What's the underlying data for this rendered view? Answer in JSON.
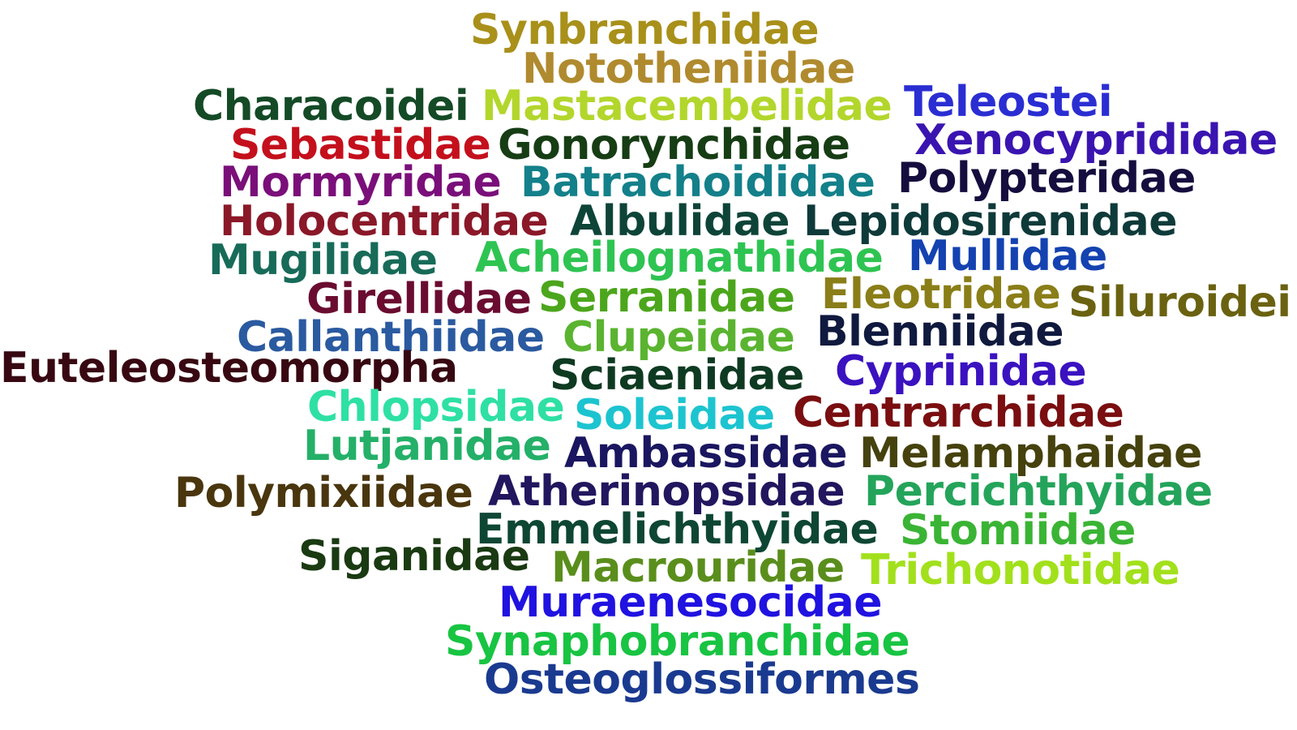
{
  "words": [
    {
      "text": "Synbranchidae",
      "color": "#a8901a"
    },
    {
      "text": "Nototheniidae",
      "color": "#b08a2e"
    },
    {
      "text": "Characoidei",
      "color": "#144a26"
    },
    {
      "text": "Mastacembelidae",
      "color": "#b3d62c"
    },
    {
      "text": "Teleostei",
      "color": "#2a2ed2"
    },
    {
      "text": "Sebastidae",
      "color": "#c4101c"
    },
    {
      "text": "Gonorynchidae",
      "color": "#163d14"
    },
    {
      "text": "Xenocyprididae",
      "color": "#3a14b0"
    },
    {
      "text": "Mormyridae",
      "color": "#7a0f7a"
    },
    {
      "text": "Batrachoididae",
      "color": "#13808a"
    },
    {
      "text": "Polypteridae",
      "color": "#150d3e"
    },
    {
      "text": "Holocentridae",
      "color": "#8a1828"
    },
    {
      "text": "Albulidae",
      "color": "#0e4438"
    },
    {
      "text": "Lepidosirenidae",
      "color": "#0f3a3a"
    },
    {
      "text": "Mugilidae",
      "color": "#176b58"
    },
    {
      "text": "Acheilognathidae",
      "color": "#2ec452"
    },
    {
      "text": "Mullidae",
      "color": "#1442b0"
    },
    {
      "text": "Girellidae",
      "color": "#6a0c30"
    },
    {
      "text": "Serranidae",
      "color": "#4ca61c"
    },
    {
      "text": "Eleotridae",
      "color": "#8a7e18"
    },
    {
      "text": "Siluroidei",
      "color": "#6a6210"
    },
    {
      "text": "Callanthiidae",
      "color": "#2a5aa0"
    },
    {
      "text": "Clupeidae",
      "color": "#5ab430"
    },
    {
      "text": "Blenniidae",
      "color": "#10193e"
    },
    {
      "text": "Euteleosteomorpha",
      "color": "#380812"
    },
    {
      "text": "Sciaenidae",
      "color": "#0e3a22"
    },
    {
      "text": "Cyprinidae",
      "color": "#3a12c0"
    },
    {
      "text": "Chlopsidae",
      "color": "#2ee0a4"
    },
    {
      "text": "Soleidae",
      "color": "#1cc4d0"
    },
    {
      "text": "Centrarchidae",
      "color": "#7a0e10"
    },
    {
      "text": "Lutjanidae",
      "color": "#24b068"
    },
    {
      "text": "Ambassidae",
      "color": "#1a1660"
    },
    {
      "text": "Melamphaidae",
      "color": "#46420e"
    },
    {
      "text": "Polymixiidae",
      "color": "#4a360e"
    },
    {
      "text": "Atherinopsidae",
      "color": "#22165e"
    },
    {
      "text": "Percichthyidae",
      "color": "#24a45a"
    },
    {
      "text": "Emmelichthyidae",
      "color": "#0e4634"
    },
    {
      "text": "Stomiidae",
      "color": "#3ab434"
    },
    {
      "text": "Siganidae",
      "color": "#1a3a12"
    },
    {
      "text": "Macrouridae",
      "color": "#5a8e1c"
    },
    {
      "text": "Trichonotidae",
      "color": "#a2e01c"
    },
    {
      "text": "Muraenesocidae",
      "color": "#2012e0"
    },
    {
      "text": "Synaphobranchidae",
      "color": "#18c442"
    },
    {
      "text": "Osteoglossiformes",
      "color": "#1a3a90"
    }
  ]
}
